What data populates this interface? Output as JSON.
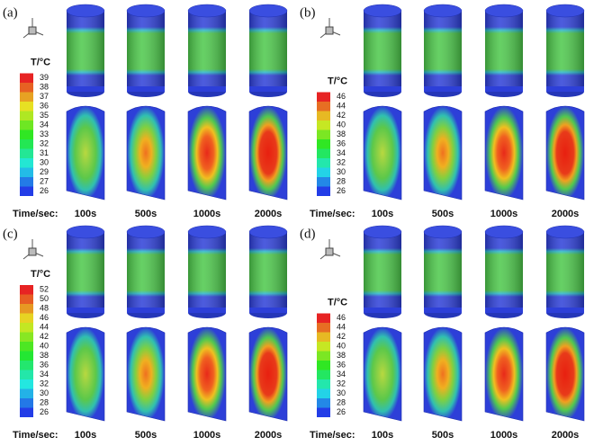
{
  "panels": [
    {
      "label": "(a)",
      "colorbar_title": "T/°C",
      "ticks": [
        39,
        38,
        37,
        36,
        35,
        34,
        33,
        32,
        31,
        30,
        29,
        27,
        26
      ],
      "time_label": "Time/sec:",
      "times": [
        "100s",
        "500s",
        "1000s",
        "2000s"
      ]
    },
    {
      "label": "(b)",
      "colorbar_title": "T/°C",
      "ticks": [
        46,
        44,
        42,
        40,
        38,
        36,
        34,
        32,
        30,
        28,
        26
      ],
      "time_label": "Time/sec:",
      "times": [
        "100s",
        "500s",
        "1000s",
        "2000s"
      ]
    },
    {
      "label": "(c)",
      "colorbar_title": "T/°C",
      "ticks": [
        52,
        50,
        48,
        46,
        44,
        42,
        40,
        38,
        36,
        34,
        32,
        30,
        28,
        26
      ],
      "time_label": "Time/sec:",
      "times": [
        "100s",
        "500s",
        "1000s",
        "2000s"
      ]
    },
    {
      "label": "(d)",
      "colorbar_title": "T/°C",
      "ticks": [
        46,
        44,
        42,
        40,
        38,
        36,
        34,
        32,
        30,
        28,
        26
      ],
      "time_label": "Time/sec:",
      "times": [
        "100s",
        "500s",
        "1000s",
        "2000s"
      ]
    }
  ]
}
